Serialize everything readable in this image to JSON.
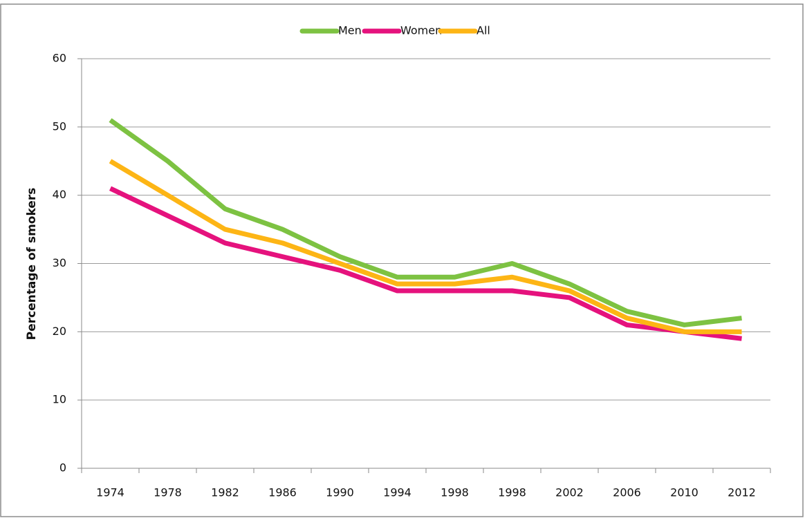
{
  "chart_data": {
    "type": "line",
    "y_label": "Percentage of smokers",
    "categories": [
      "1974",
      "1978",
      "1982",
      "1986",
      "1990",
      "1994",
      "1998",
      "1998",
      "2002",
      "2006",
      "2010",
      "2012"
    ],
    "series": [
      {
        "name": "Men",
        "color": "#7dc242",
        "values": [
          51,
          45,
          38,
          35,
          31,
          28,
          28,
          30,
          27,
          23,
          21,
          22
        ]
      },
      {
        "name": "Women",
        "color": "#e5127d",
        "values": [
          41,
          37,
          33,
          31,
          29,
          26,
          26,
          26,
          25,
          21,
          20,
          19
        ]
      },
      {
        "name": "All",
        "color": "#fdb515",
        "values": [
          45,
          40,
          35,
          33,
          30,
          27,
          27,
          28,
          26,
          22,
          20,
          20
        ]
      }
    ],
    "ylim": [
      0,
      60
    ],
    "yticks": [
      0,
      10,
      20,
      30,
      40,
      50,
      60
    ],
    "grid": true,
    "legend": "top"
  }
}
